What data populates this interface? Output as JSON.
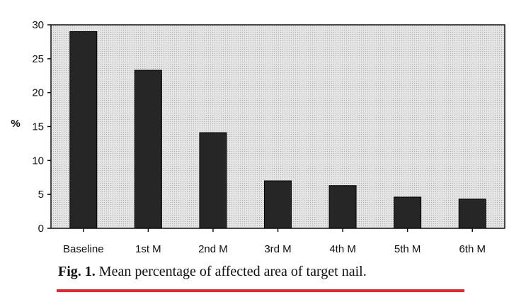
{
  "chart_data": {
    "type": "bar",
    "categories": [
      "Baseline",
      "1st M",
      "2nd M",
      "3rd M",
      "4th M",
      "5th M",
      "6th M"
    ],
    "values": [
      29,
      23.3,
      14.1,
      7,
      6.3,
      4.6,
      4.3
    ],
    "xlabel": "",
    "ylabel": "%",
    "ylim": [
      0,
      30
    ],
    "yticks": [
      0,
      5,
      10,
      15,
      20,
      25,
      30
    ],
    "grid": false,
    "colors": {
      "bar": "#262626",
      "plot_background": "#dcdcdc",
      "axis": "#111111"
    }
  },
  "caption": {
    "label": "Fig. 1.",
    "text": "Mean percentage of affected area of target nail."
  },
  "colors": {
    "underline": "#e3262b"
  }
}
